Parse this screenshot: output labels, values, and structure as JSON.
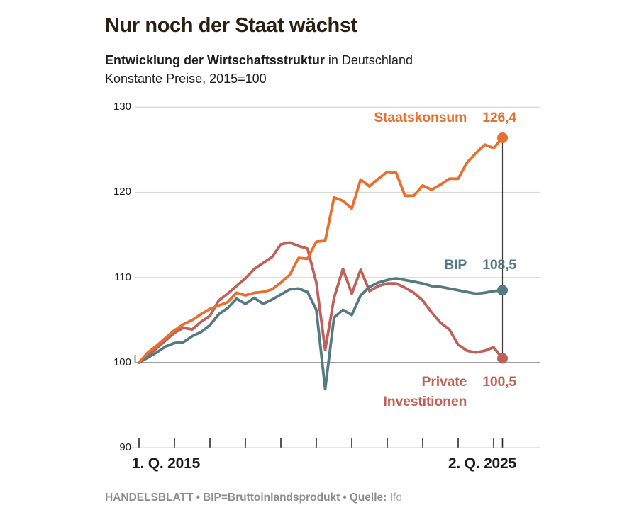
{
  "header": {
    "title": "Nur noch der Staat wächst",
    "subtitle_bold": "Entwicklung der Wirtschaftsstruktur",
    "subtitle_rest": " in Deutschland",
    "subtitle_line2": "Konstante Preise, 2015=100"
  },
  "axes": {
    "y_ticks": [
      "130",
      "120",
      "110",
      "100",
      "90"
    ],
    "x_left_label": "1. Q. 2015",
    "x_right_label": "2. Q. 2025"
  },
  "series_labels": {
    "staatskonsum": {
      "name": "Staatskonsum",
      "value": "126,4"
    },
    "bip": {
      "name": "BIP",
      "value": "108,5"
    },
    "private": {
      "name_line1": "Private",
      "name_line2": "Investitionen",
      "value": "100,5"
    }
  },
  "footer": {
    "brand": "HANDELSBLATT",
    "separator": "•",
    "note": "BIP=Bruttoinlandsprodukt",
    "source_label": "Quelle:",
    "source": "Ifo"
  },
  "colors": {
    "staatskonsum": "#e8702f",
    "bip": "#567a84",
    "private": "#bf6158",
    "grid_light": "#d8d8d8",
    "grid_base": "#8f8f8f",
    "axis_line": "#c9c9c9",
    "tick": "#2a2a2a",
    "marker_line": "#3c3c38"
  },
  "chart_data": {
    "type": "line",
    "title": "Nur noch der Staat wächst",
    "subtitle": "Entwicklung der Wirtschaftsstruktur in Deutschland, Konstante Preise, 2015=100",
    "x_unit": "quarter",
    "x_start": "2015 Q1",
    "x_end": "2025 Q2",
    "ylim": [
      90,
      130
    ],
    "y_gridlines_light": [
      130,
      120,
      110
    ],
    "y_baseline": 100,
    "legend_position": "inline-right",
    "grid": "horizontal-only",
    "quarters": [
      "2015 Q1",
      "2015 Q2",
      "2015 Q3",
      "2015 Q4",
      "2016 Q1",
      "2016 Q2",
      "2016 Q3",
      "2016 Q4",
      "2017 Q1",
      "2017 Q2",
      "2017 Q3",
      "2017 Q4",
      "2018 Q1",
      "2018 Q2",
      "2018 Q3",
      "2018 Q4",
      "2019 Q1",
      "2019 Q2",
      "2019 Q3",
      "2019 Q4",
      "2020 Q1",
      "2020 Q2",
      "2020 Q3",
      "2020 Q4",
      "2021 Q1",
      "2021 Q2",
      "2021 Q3",
      "2021 Q4",
      "2022 Q1",
      "2022 Q2",
      "2022 Q3",
      "2022 Q4",
      "2023 Q1",
      "2023 Q2",
      "2023 Q3",
      "2023 Q4",
      "2024 Q1",
      "2024 Q2",
      "2024 Q3",
      "2024 Q4",
      "2025 Q1",
      "2025 Q2"
    ],
    "series": [
      {
        "name": "Private Investitionen",
        "color": "#bf6158",
        "end_value": 100.5,
        "values": [
          100.0,
          100.8,
          101.7,
          102.6,
          103.5,
          104.1,
          103.9,
          104.8,
          105.5,
          107.3,
          108.1,
          109.0,
          109.9,
          111.0,
          111.7,
          112.4,
          113.9,
          114.1,
          113.7,
          113.4,
          109.4,
          101.5,
          107.6,
          111.0,
          108.1,
          110.9,
          108.4,
          109.0,
          109.3,
          109.3,
          108.8,
          108.2,
          107.3,
          105.9,
          104.7,
          103.9,
          102.1,
          101.4,
          101.2,
          101.4,
          101.8,
          100.5
        ]
      },
      {
        "name": "BIP",
        "color": "#567a84",
        "end_value": 108.5,
        "values": [
          100.0,
          100.6,
          101.2,
          101.9,
          102.3,
          102.4,
          103.1,
          103.6,
          104.4,
          105.7,
          106.4,
          107.5,
          106.9,
          107.6,
          106.9,
          107.4,
          108.0,
          108.6,
          108.7,
          108.3,
          106.2,
          96.9,
          105.3,
          106.2,
          105.6,
          107.9,
          108.9,
          109.4,
          109.7,
          109.9,
          109.7,
          109.5,
          109.3,
          109.0,
          108.9,
          108.7,
          108.5,
          108.3,
          108.1,
          108.2,
          108.4,
          108.5
        ]
      },
      {
        "name": "Staatskonsum",
        "color": "#e8702f",
        "end_value": 126.4,
        "values": [
          100.0,
          101.2,
          102.0,
          102.9,
          103.8,
          104.5,
          105.0,
          105.7,
          106.3,
          106.7,
          107.1,
          108.2,
          107.9,
          108.2,
          108.3,
          108.6,
          109.4,
          110.3,
          112.3,
          112.2,
          114.2,
          114.3,
          119.4,
          119.0,
          118.1,
          121.5,
          120.7,
          121.6,
          122.4,
          122.3,
          119.6,
          119.6,
          120.8,
          120.3,
          120.9,
          121.6,
          121.6,
          123.5,
          124.6,
          125.6,
          125.2,
          126.4
        ]
      }
    ],
    "source": "Ifo"
  }
}
